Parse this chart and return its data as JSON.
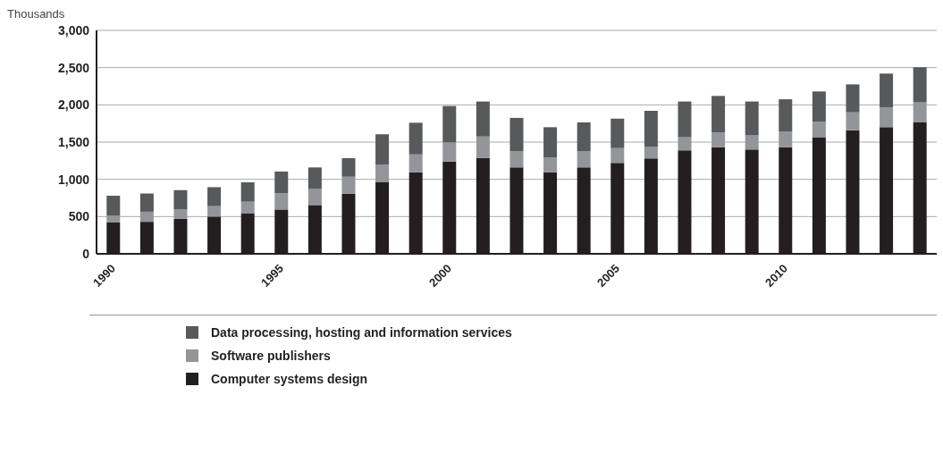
{
  "chart_data": {
    "type": "bar",
    "stacked": true,
    "ylabel": "Thousands",
    "categories": [
      "1990",
      null,
      null,
      null,
      null,
      "1995",
      null,
      null,
      null,
      null,
      "2000",
      null,
      null,
      null,
      null,
      "2005",
      null,
      null,
      null,
      null,
      "2010",
      null,
      null,
      null,
      null
    ],
    "series": [
      {
        "name": "Computer systems design",
        "color": "#231f20",
        "values": [
          420,
          430,
          470,
          500,
          540,
          595,
          655,
          805,
          960,
          1095,
          1240,
          1285,
          1160,
          1095,
          1160,
          1220,
          1280,
          1390,
          1430,
          1400,
          1430,
          1565,
          1660,
          1700,
          1765
        ]
      },
      {
        "name": "Software publishers",
        "color": "#939598",
        "values": [
          90,
          135,
          125,
          140,
          160,
          220,
          215,
          230,
          235,
          240,
          255,
          290,
          220,
          200,
          220,
          200,
          160,
          175,
          200,
          190,
          210,
          210,
          240,
          265,
          270
        ]
      },
      {
        "name": "Data processing, hosting and information services",
        "color": "#58595b",
        "values": [
          270,
          245,
          260,
          255,
          260,
          290,
          290,
          250,
          410,
          425,
          490,
          470,
          445,
          405,
          385,
          395,
          480,
          480,
          490,
          455,
          435,
          405,
          375,
          455,
          470
        ]
      }
    ],
    "ylim": [
      0,
      3000
    ],
    "yticks": [
      0,
      500,
      {
        "value": 1000,
        "label": "1,000"
      },
      {
        "value": 1500,
        "label": "1,500"
      },
      {
        "value": 2000,
        "label": "2,000"
      },
      {
        "value": 2500,
        "label": "2,500"
      },
      {
        "value": 3000,
        "label": "3,000"
      }
    ],
    "grid": "y",
    "legend": "bottom"
  }
}
